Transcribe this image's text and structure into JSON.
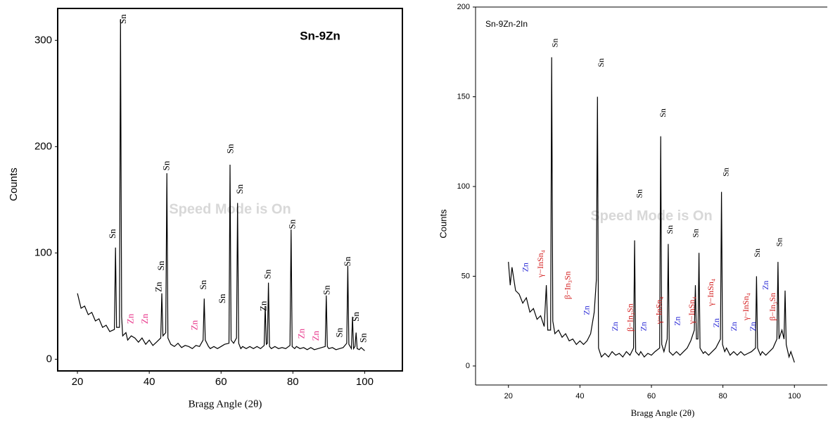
{
  "chart_data": [
    {
      "type": "line",
      "title": "Sn-9Zn",
      "xlabel": "Bragg Angle (2θ)",
      "ylabel": "Counts",
      "watermark": "Speed Mode is On",
      "color": "#000000",
      "xlim": [
        14.5,
        110.5
      ],
      "ylim": [
        -11,
        330
      ],
      "xticks": [
        20,
        40,
        60,
        80,
        100
      ],
      "yticks": [
        0,
        100,
        200,
        300
      ],
      "x": [
        20,
        21,
        22,
        23,
        24,
        25,
        26,
        27,
        28,
        29,
        30.3,
        30.6,
        30.9,
        31.7,
        32,
        32.3,
        32.6,
        33.5,
        34,
        35,
        36,
        37,
        38,
        39,
        40,
        41,
        42,
        43.2,
        43.5,
        43.8,
        44.6,
        44.9,
        45.2,
        46,
        47,
        48,
        49,
        50,
        51,
        52,
        53,
        54,
        55,
        55.3,
        55.6,
        56.5,
        57,
        58,
        59,
        60,
        61,
        62.2,
        62.5,
        62.8,
        63.5,
        64.3,
        64.6,
        64.9,
        65.5,
        66,
        67,
        68,
        69,
        70,
        71,
        72,
        72.3,
        72.6,
        72.9,
        73.2,
        73.5,
        74,
        75,
        76,
        77,
        78,
        79.2,
        79.5,
        79.8,
        80.5,
        81,
        82,
        83,
        84,
        85,
        86,
        87,
        88,
        89,
        89.3,
        89.6,
        90,
        91,
        92,
        93,
        94,
        95,
        95.3,
        95.6,
        96.3,
        96.6,
        96.9,
        97.3,
        97.6,
        97.9,
        98.5,
        99,
        100
      ],
      "values": [
        62,
        48,
        50,
        42,
        44,
        36,
        38,
        30,
        32,
        26,
        28,
        105,
        30,
        30,
        320,
        40,
        22,
        25,
        18,
        22,
        20,
        16,
        20,
        14,
        18,
        13,
        16,
        20,
        62,
        22,
        25,
        175,
        20,
        14,
        12,
        15,
        11,
        13,
        12,
        10,
        13,
        12,
        18,
        57,
        18,
        12,
        10,
        12,
        10,
        12,
        14,
        15,
        183,
        18,
        15,
        20,
        147,
        15,
        10,
        12,
        10,
        12,
        10,
        12,
        10,
        13,
        50,
        14,
        15,
        72,
        12,
        10,
        12,
        10,
        11,
        10,
        13,
        122,
        12,
        10,
        12,
        10,
        11,
        9,
        11,
        9,
        10,
        11,
        12,
        60,
        12,
        10,
        11,
        9,
        10,
        11,
        15,
        88,
        14,
        10,
        40,
        10,
        12,
        25,
        10,
        9,
        11,
        8
      ],
      "annotations": [
        {
          "text": "Sn",
          "x": 30.0,
          "y": 118,
          "color": "#000000"
        },
        {
          "text": "Sn",
          "x": 32.9,
          "y": 320,
          "color": "#000000"
        },
        {
          "text": "Zn",
          "x": 35.0,
          "y": 38,
          "color": "#e8358a"
        },
        {
          "text": "Zn",
          "x": 39.0,
          "y": 38,
          "color": "#e8358a"
        },
        {
          "text": "Zn",
          "x": 42.8,
          "y": 68,
          "color": "#000000"
        },
        {
          "text": "Sn",
          "x": 43.5,
          "y": 88,
          "color": "#000000"
        },
        {
          "text": "Sn",
          "x": 45.0,
          "y": 182,
          "color": "#000000"
        },
        {
          "text": "Zn",
          "x": 52.8,
          "y": 32,
          "color": "#e8358a"
        },
        {
          "text": "Sn",
          "x": 55.3,
          "y": 70,
          "color": "#000000"
        },
        {
          "text": "Sn",
          "x": 60.5,
          "y": 57,
          "color": "#000000"
        },
        {
          "text": "Sn",
          "x": 62.8,
          "y": 198,
          "color": "#000000"
        },
        {
          "text": "Sn",
          "x": 65.4,
          "y": 160,
          "color": "#000000"
        },
        {
          "text": "Zn",
          "x": 72.0,
          "y": 50,
          "color": "#000000"
        },
        {
          "text": "Sn",
          "x": 73.2,
          "y": 80,
          "color": "#000000"
        },
        {
          "text": "Sn",
          "x": 80.0,
          "y": 127,
          "color": "#000000"
        },
        {
          "text": "Zn",
          "x": 82.6,
          "y": 24,
          "color": "#e8358a"
        },
        {
          "text": "Zn",
          "x": 86.6,
          "y": 22,
          "color": "#e8358a"
        },
        {
          "text": "Sn",
          "x": 89.6,
          "y": 65,
          "color": "#000000"
        },
        {
          "text": "Sn",
          "x": 93.2,
          "y": 25,
          "color": "#000000"
        },
        {
          "text": "Sn",
          "x": 95.4,
          "y": 92,
          "color": "#000000"
        },
        {
          "text": "Sn",
          "x": 97.8,
          "y": 40,
          "color": "#000000"
        },
        {
          "text": "Sn",
          "x": 99.8,
          "y": 20,
          "color": "#000000"
        }
      ]
    },
    {
      "type": "line",
      "title": "Sn-9Zn-2In",
      "xlabel": "Bragg Angle (2θ)",
      "ylabel": "Counts",
      "watermark": "Speed Mode is On",
      "color": "#000000",
      "xlim": [
        10.8,
        109.2
      ],
      "ylim": [
        -10.6,
        200
      ],
      "xticks": [
        20,
        40,
        60,
        80,
        100
      ],
      "yticks": [
        0,
        50,
        100,
        150,
        200
      ],
      "x": [
        20,
        20.5,
        21,
        22,
        23,
        24,
        25,
        26,
        27,
        28,
        29,
        30,
        30.6,
        31,
        31.8,
        32.1,
        32.4,
        33,
        34,
        35,
        36,
        37,
        38,
        39,
        40,
        41,
        42,
        43,
        44,
        44.6,
        44.9,
        45.2,
        46,
        47,
        48,
        49,
        50,
        51,
        52,
        53,
        54,
        55,
        55.3,
        55.6,
        56.5,
        57,
        58,
        59,
        60,
        61,
        62.3,
        62.6,
        62.9,
        63.5,
        64.4,
        64.7,
        65,
        66,
        67,
        68,
        69,
        70,
        71,
        72,
        72.3,
        72.6,
        73,
        73.3,
        73.6,
        74.5,
        75,
        76,
        77,
        78,
        79.3,
        79.6,
        79.9,
        80.5,
        81,
        82,
        83,
        84,
        85,
        86,
        87,
        88,
        89.1,
        89.4,
        89.7,
        90.5,
        91,
        92,
        93,
        94,
        95.1,
        95.4,
        95.7,
        96.5,
        97.1,
        97.4,
        97.7,
        98.5,
        99,
        100
      ],
      "values": [
        58,
        45,
        55,
        42,
        40,
        35,
        38,
        30,
        32,
        26,
        28,
        22,
        45,
        20,
        20,
        172,
        25,
        18,
        20,
        16,
        18,
        14,
        15,
        12,
        14,
        12,
        14,
        18,
        30,
        48,
        150,
        10,
        5,
        7,
        5,
        8,
        6,
        7,
        5,
        8,
        6,
        10,
        70,
        8,
        6,
        8,
        5,
        7,
        6,
        8,
        10,
        128,
        12,
        8,
        15,
        68,
        8,
        6,
        8,
        6,
        8,
        10,
        14,
        20,
        45,
        15,
        15,
        63,
        10,
        7,
        8,
        6,
        8,
        10,
        15,
        97,
        12,
        8,
        10,
        6,
        8,
        6,
        8,
        6,
        7,
        8,
        10,
        50,
        10,
        6,
        8,
        6,
        8,
        10,
        15,
        58,
        15,
        20,
        15,
        42,
        12,
        5,
        8,
        2
      ],
      "annotations": [
        {
          "text": "Sn",
          "x": 33.2,
          "y": 180,
          "color": "#000000"
        },
        {
          "text": "Sn",
          "x": 46.1,
          "y": 169,
          "color": "#000000"
        },
        {
          "text": "Sn",
          "x": 63.4,
          "y": 141,
          "color": "#000000"
        },
        {
          "text": "Sn",
          "x": 81.0,
          "y": 108,
          "color": "#000000"
        },
        {
          "text": "Sn",
          "x": 56.8,
          "y": 96,
          "color": "#000000"
        },
        {
          "text": "Sn",
          "x": 65.4,
          "y": 76,
          "color": "#000000"
        },
        {
          "text": "Sn",
          "x": 72.5,
          "y": 74,
          "color": "#000000"
        },
        {
          "text": "Sn",
          "x": 89.8,
          "y": 63,
          "color": "#000000"
        },
        {
          "text": "Sn",
          "x": 96.0,
          "y": 69,
          "color": "#000000"
        },
        {
          "text": "Zn",
          "x": 24.9,
          "y": 55,
          "color": "#2b2bd6"
        },
        {
          "text": "γ−InSn₄",
          "x": 29.2,
          "y": 57,
          "color": "#d42020"
        },
        {
          "text": "β−In₃Sn",
          "x": 36.7,
          "y": 45,
          "color": "#d42020"
        },
        {
          "text": "Zn",
          "x": 42.0,
          "y": 31,
          "color": "#2b2bd6"
        },
        {
          "text": "Zn",
          "x": 50.0,
          "y": 22,
          "color": "#2b2bd6"
        },
        {
          "text": "β−In₃Sn",
          "x": 54.2,
          "y": 27,
          "color": "#d42020"
        },
        {
          "text": "Zn",
          "x": 58.0,
          "y": 22,
          "color": "#2b2bd6"
        },
        {
          "text": "γ−InSn₄",
          "x": 62.3,
          "y": 31,
          "color": "#d42020"
        },
        {
          "text": "Zn",
          "x": 67.4,
          "y": 25,
          "color": "#2b2bd6"
        },
        {
          "text": "γ−InSn₄",
          "x": 71.5,
          "y": 31,
          "color": "#d42020"
        },
        {
          "text": "γ−InSn₄",
          "x": 76.8,
          "y": 41,
          "color": "#d42020"
        },
        {
          "text": "Zn",
          "x": 78.4,
          "y": 24,
          "color": "#2b2bd6"
        },
        {
          "text": "Zn",
          "x": 83.3,
          "y": 22,
          "color": "#2b2bd6"
        },
        {
          "text": "γ−InSn₄",
          "x": 86.6,
          "y": 33,
          "color": "#d42020"
        },
        {
          "text": "Zn",
          "x": 88.6,
          "y": 22,
          "color": "#2b2bd6"
        },
        {
          "text": "Zn",
          "x": 92.1,
          "y": 45,
          "color": "#2b2bd6"
        },
        {
          "text": "β−In₃Sn",
          "x": 94.1,
          "y": 33,
          "color": "#d42020"
        }
      ]
    }
  ]
}
